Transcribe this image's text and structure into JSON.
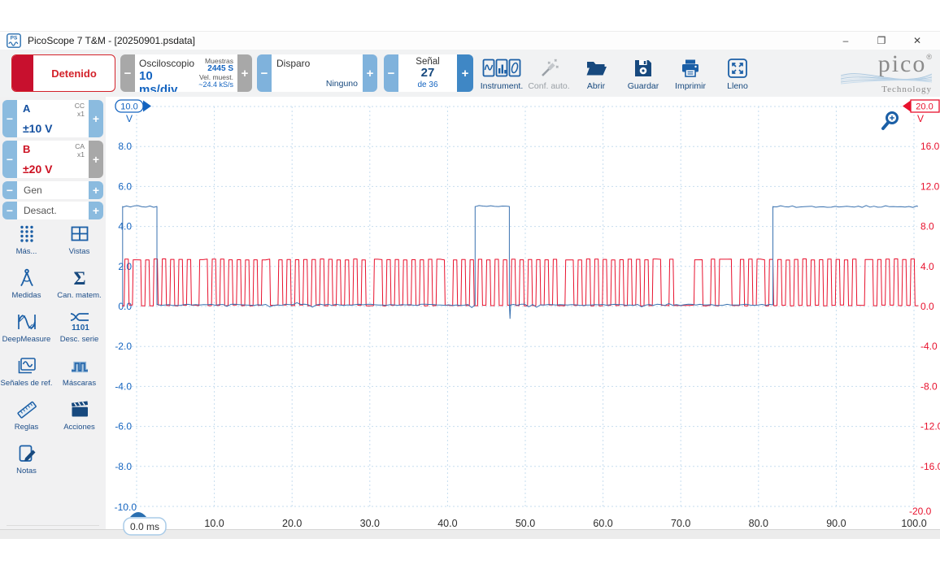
{
  "window": {
    "title": "PicoScope 7 T&M - [20250901.psdata]",
    "controls": {
      "minimize": "–",
      "restore": "❐",
      "close": "✕"
    }
  },
  "ui": {
    "minus": "−",
    "plus": "+"
  },
  "toolbar": {
    "run_label": "Detenido",
    "scope": {
      "title": "Osciloscopio",
      "timebase": "10 ms/div",
      "samples_label": "Muestras",
      "samples_value": "2445 S",
      "rate_label": "Vel. muest.",
      "rate_value": "~24.4 kS/s"
    },
    "trigger": {
      "title": "Disparo",
      "value": "Ninguno"
    },
    "signal": {
      "title": "Señal",
      "value": "27",
      "of": "de 36"
    },
    "buttons": [
      {
        "name": "instruments",
        "label": "Instrument.",
        "icon": "instruments-icon",
        "enabled": true
      },
      {
        "name": "auto-setup",
        "label": "Conf. auto.",
        "icon": "wand-icon",
        "enabled": false
      },
      {
        "name": "open",
        "label": "Abrir",
        "icon": "open-folder-icon",
        "enabled": true
      },
      {
        "name": "save",
        "label": "Guardar",
        "icon": "save-icon",
        "enabled": true
      },
      {
        "name": "print",
        "label": "Imprimir",
        "icon": "print-icon",
        "enabled": true
      },
      {
        "name": "fullscreen",
        "label": "Lleno",
        "icon": "fullscreen-icon",
        "enabled": true
      }
    ],
    "logo": {
      "brand": "pico",
      "registered": "®",
      "sub": "Technology"
    }
  },
  "sidebar": {
    "channel_a": {
      "name": "A",
      "coupling": "CC",
      "probe": "x1",
      "range": "±10 V"
    },
    "channel_b": {
      "name": "B",
      "coupling": "CA",
      "probe": "x1",
      "range": "±20 V"
    },
    "gen_label": "Gen",
    "gen_state": "Desact.",
    "tools": [
      {
        "name": "more",
        "label": "Más...",
        "icon": "more-dots-icon"
      },
      {
        "name": "views",
        "label": "Vistas",
        "icon": "views-icon"
      },
      {
        "name": "measurements",
        "label": "Medidas",
        "icon": "measurements-icon"
      },
      {
        "name": "math-channels",
        "label": "Can. matem.",
        "icon": "sigma-icon",
        "glyph": "Σ"
      },
      {
        "name": "deepmeasure",
        "label": "DeepMeasure",
        "icon": "deepmeasure-icon"
      },
      {
        "name": "serial-decode",
        "label": "Desc. serie",
        "icon": "serial-decode-icon",
        "glyph": "1101"
      },
      {
        "name": "reference-waveforms",
        "label": "Señales de ref.",
        "icon": "reference-icon"
      },
      {
        "name": "masks",
        "label": "Máscaras",
        "icon": "masks-icon"
      },
      {
        "name": "rulers",
        "label": "Reglas",
        "icon": "rulers-icon"
      },
      {
        "name": "actions",
        "label": "Acciones",
        "icon": "actions-icon"
      },
      {
        "name": "notes",
        "label": "Notas",
        "icon": "notes-icon"
      }
    ]
  },
  "plot": {
    "left_axis": {
      "top": "10.0",
      "unit": "V",
      "ticks": [
        "8.0",
        "6.0",
        "4.0",
        "2.0",
        "0.0",
        "-2.0",
        "-4.0",
        "-6.0",
        "-8.0"
      ],
      "bottom": "-10.0",
      "color": "#1464c0"
    },
    "right_axis": {
      "top": "20.0",
      "unit": "V",
      "ticks": [
        "16.0",
        "12.0",
        "8.0",
        "4.0",
        "0.0",
        "-4.0",
        "-8.0",
        "-12.0",
        "-16.0"
      ],
      "bottom": "-20.0",
      "color": "#e8112d"
    },
    "x_axis": {
      "marker": "0.0 ms",
      "ticks": [
        "10.0",
        "20.0",
        "30.0",
        "40.0",
        "50.0",
        "60.0",
        "70.0",
        "80.0",
        "90.0",
        "100.0"
      ],
      "color": "#2b2b2b"
    },
    "grid_color": "#c6ddef",
    "zoom_icon": "zoom-in-magnifier"
  },
  "chart_data": {
    "type": "line",
    "x_unit": "ms",
    "x_range": [
      0,
      100
    ],
    "timebase": "10 ms/div",
    "left_axis_range": [
      -10,
      10
    ],
    "right_axis_range": [
      -20,
      20
    ],
    "noise_seed": 20250901,
    "series": [
      {
        "name": "channel-a",
        "color": "#3a72b0",
        "axis": "left",
        "high_v": 5.0,
        "low_v": 0.08,
        "high_segments_ms": [
          [
            -1.8,
            2.62
          ],
          [
            43.55,
            47.95
          ],
          [
            81.85,
            100.5
          ]
        ],
        "fall_spike": {
          "t_ms": 47.95,
          "v": -0.6
        }
      },
      {
        "name": "channel-b",
        "color": "#e8112d",
        "axis": "right",
        "high_v": 4.7,
        "low_v": 0.1,
        "bit_ms": 0.535,
        "t_start_ms": -2.14,
        "bit_groups": [
          "0101",
          "1010101010",
          "1010011010",
          "1010101010",
          "1100101010",
          "1010101010",
          "1010100110",
          "1010101010",
          "1011001010",
          "1010101010",
          "1010101010",
          "1001101010",
          "1010101010",
          "1010110010",
          "0000110010",
          "1110010101",
          "1010101010",
          "1010101010",
          "1010011010",
          "10101010"
        ]
      }
    ]
  }
}
